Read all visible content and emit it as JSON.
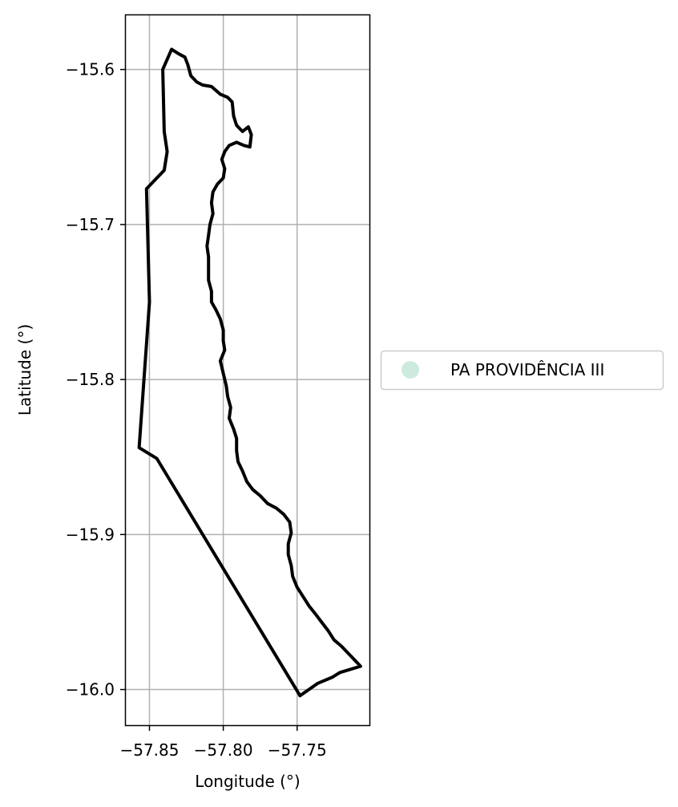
{
  "chart_data": {
    "type": "map",
    "xlabel": "Longitude (°)",
    "ylabel": "Latitude (°)",
    "xlim": [
      -57.866,
      -57.701
    ],
    "ylim": [
      -16.023,
      -15.565
    ],
    "x_ticks": [
      {
        "value": -57.85,
        "label": "−57.85"
      },
      {
        "value": -57.8,
        "label": "−57.80"
      },
      {
        "value": -57.75,
        "label": "−57.75"
      }
    ],
    "y_ticks": [
      {
        "value": -15.6,
        "label": "−15.6"
      },
      {
        "value": -15.7,
        "label": "−15.7"
      },
      {
        "value": -15.8,
        "label": "−15.8"
      },
      {
        "value": -15.9,
        "label": "−15.9"
      },
      {
        "value": -16.0,
        "label": "−16.0"
      }
    ],
    "grid": true,
    "legend": {
      "position": "right",
      "entries": [
        {
          "label": "PA PROVIDÊNCIA III",
          "color": "#cdebdc"
        }
      ]
    },
    "boundary": {
      "name": "PA PROVIDÊNCIA III",
      "edge_color": "#000000",
      "coordinates": [
        [
          -57.835,
          -15.587
        ],
        [
          -57.83,
          -15.59
        ],
        [
          -57.826,
          -15.592
        ],
        [
          -57.824,
          -15.597
        ],
        [
          -57.822,
          -15.604
        ],
        [
          -57.818,
          -15.608
        ],
        [
          -57.814,
          -15.61
        ],
        [
          -57.808,
          -15.611
        ],
        [
          -57.802,
          -15.616
        ],
        [
          -57.797,
          -15.618
        ],
        [
          -57.794,
          -15.621
        ],
        [
          -57.793,
          -15.63
        ],
        [
          -57.791,
          -15.636
        ],
        [
          -57.787,
          -15.64
        ],
        [
          -57.783,
          -15.637
        ],
        [
          -57.781,
          -15.642
        ],
        [
          -57.782,
          -15.65
        ],
        [
          -57.786,
          -15.649
        ],
        [
          -57.791,
          -15.647
        ],
        [
          -57.796,
          -15.649
        ],
        [
          -57.799,
          -15.653
        ],
        [
          -57.801,
          -15.658
        ],
        [
          -57.799,
          -15.664
        ],
        [
          -57.8,
          -15.67
        ],
        [
          -57.804,
          -15.674
        ],
        [
          -57.807,
          -15.679
        ],
        [
          -57.808,
          -15.686
        ],
        [
          -57.807,
          -15.693
        ],
        [
          -57.809,
          -15.7
        ],
        [
          -57.81,
          -15.707
        ],
        [
          -57.811,
          -15.714
        ],
        [
          -57.81,
          -15.721
        ],
        [
          -57.81,
          -15.729
        ],
        [
          -57.81,
          -15.736
        ],
        [
          -57.808,
          -15.743
        ],
        [
          -57.808,
          -15.75
        ],
        [
          -57.805,
          -15.755
        ],
        [
          -57.802,
          -15.761
        ],
        [
          -57.8,
          -15.768
        ],
        [
          -57.8,
          -15.775
        ],
        [
          -57.799,
          -15.781
        ],
        [
          -57.802,
          -15.788
        ],
        [
          -57.8,
          -15.796
        ],
        [
          -57.798,
          -15.804
        ],
        [
          -57.797,
          -15.811
        ],
        [
          -57.795,
          -15.818
        ],
        [
          -57.796,
          -15.825
        ],
        [
          -57.793,
          -15.832
        ],
        [
          -57.791,
          -15.838
        ],
        [
          -57.791,
          -15.846
        ],
        [
          -57.79,
          -15.853
        ],
        [
          -57.787,
          -15.859
        ],
        [
          -57.784,
          -15.866
        ],
        [
          -57.78,
          -15.871
        ],
        [
          -57.775,
          -15.875
        ],
        [
          -57.77,
          -15.88
        ],
        [
          -57.764,
          -15.883
        ],
        [
          -57.759,
          -15.887
        ],
        [
          -57.755,
          -15.892
        ],
        [
          -57.754,
          -15.899
        ],
        [
          -57.756,
          -15.906
        ],
        [
          -57.756,
          -15.913
        ],
        [
          -57.754,
          -15.92
        ],
        [
          -57.753,
          -15.927
        ],
        [
          -57.75,
          -15.934
        ],
        [
          -57.746,
          -15.94
        ],
        [
          -57.742,
          -15.946
        ],
        [
          -57.737,
          -15.952
        ],
        [
          -57.733,
          -15.957
        ],
        [
          -57.729,
          -15.962
        ],
        [
          -57.725,
          -15.968
        ],
        [
          -57.72,
          -15.972
        ],
        [
          -57.715,
          -15.977
        ],
        [
          -57.71,
          -15.982
        ],
        [
          -57.707,
          -15.985
        ],
        [
          -57.721,
          -15.989
        ],
        [
          -57.726,
          -15.992
        ],
        [
          -57.736,
          -15.996
        ],
        [
          -57.745,
          -16.002
        ],
        [
          -57.748,
          -16.004
        ],
        [
          -57.845,
          -15.851
        ],
        [
          -57.857,
          -15.844
        ],
        [
          -57.85,
          -15.75
        ],
        [
          -57.852,
          -15.677
        ],
        [
          -57.84,
          -15.665
        ],
        [
          -57.838,
          -15.653
        ],
        [
          -57.84,
          -15.64
        ],
        [
          -57.841,
          -15.6
        ]
      ]
    }
  }
}
